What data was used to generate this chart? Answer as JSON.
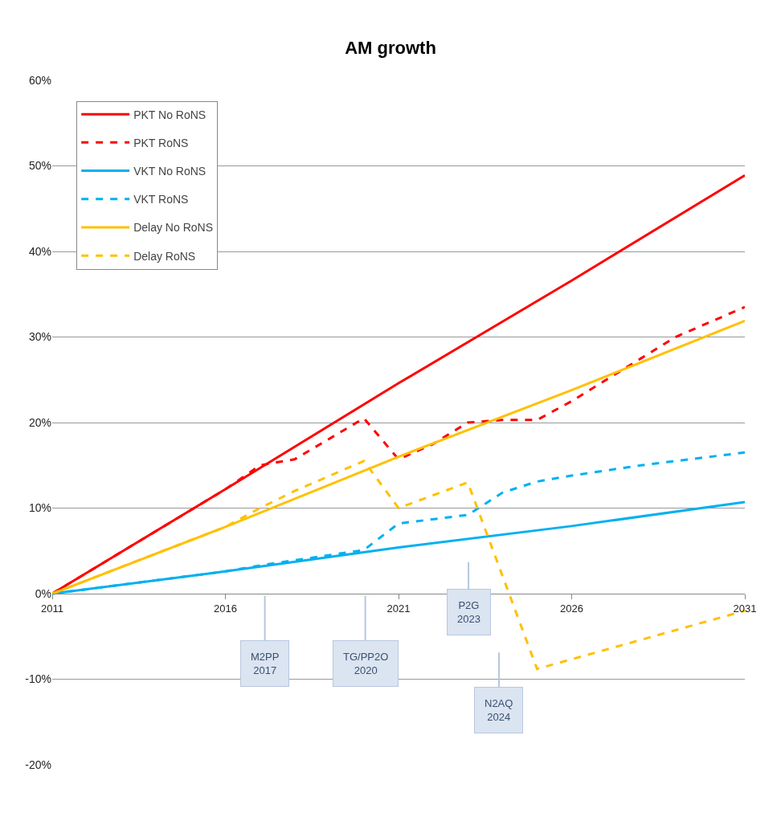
{
  "chart_data": {
    "type": "line",
    "title": "AM growth",
    "x": [
      2011,
      2016,
      2021,
      2026,
      2031
    ],
    "xlim": [
      2011,
      2031
    ],
    "xticks": [
      2011,
      2016,
      2021,
      2026,
      2031
    ],
    "ylim": [
      -20,
      60
    ],
    "yticks": [
      {
        "value": -20,
        "label": "-20%"
      },
      {
        "value": -10,
        "label": "-10%"
      },
      {
        "value": 0,
        "label": "0%"
      },
      {
        "value": 10,
        "label": "10%"
      },
      {
        "value": 20,
        "label": "20%"
      },
      {
        "value": 30,
        "label": "30%"
      },
      {
        "value": 40,
        "label": "40%"
      },
      {
        "value": 50,
        "label": "50%"
      },
      {
        "value": 60,
        "label": "60%"
      }
    ],
    "grid": "y",
    "legend": "top left",
    "marker": "none",
    "series": [
      {
        "name": "PKT No RoNS",
        "color": "#ff0000",
        "line_style": "solid",
        "values": [
          0,
          12.2,
          24.6,
          36.6,
          48.9
        ]
      },
      {
        "name": "PKT RoNS",
        "color": "#ff0000",
        "line_style": "dashed",
        "x": [
          2011,
          2016,
          2017,
          2018,
          2020,
          2021,
          2022,
          2023,
          2024,
          2025,
          2026,
          2028,
          2029,
          2031
        ],
        "values": [
          0,
          12.2,
          15,
          15.7,
          20.5,
          15.7,
          17.5,
          20,
          20.3,
          20.3,
          22.5,
          27.5,
          30,
          33.5
        ]
      },
      {
        "name": "VKT No RoNS",
        "color": "#00b0f0",
        "line_style": "solid",
        "values": [
          0,
          2.6,
          5.4,
          7.9,
          10.7
        ]
      },
      {
        "name": "VKT RoNS",
        "color": "#00b0f0",
        "line_style": "dashed",
        "x": [
          2011,
          2016,
          2017,
          2020,
          2021,
          2023,
          2024,
          2025,
          2026,
          2028,
          2031
        ],
        "values": [
          0,
          2.6,
          3.3,
          5.1,
          8.2,
          9.2,
          11.8,
          13.1,
          13.8,
          15,
          16.5
        ]
      },
      {
        "name": "Delay No RoNS",
        "color": "#ffc000",
        "line_style": "solid",
        "values": [
          0,
          7.8,
          16,
          23.8,
          31.9
        ]
      },
      {
        "name": "Delay RoNS",
        "color": "#ffc000",
        "line_style": "dashed",
        "x": [
          2011,
          2016,
          2017,
          2018,
          2020,
          2021,
          2023,
          2025,
          2031
        ],
        "values": [
          0,
          7.8,
          10,
          12,
          15.5,
          10,
          13,
          -8.8,
          -2
        ]
      }
    ],
    "annotations": [
      "M2PP\n2017",
      "TG/PP2O\n2020",
      "P2G\n2023",
      "N2AQ\n2024"
    ]
  }
}
